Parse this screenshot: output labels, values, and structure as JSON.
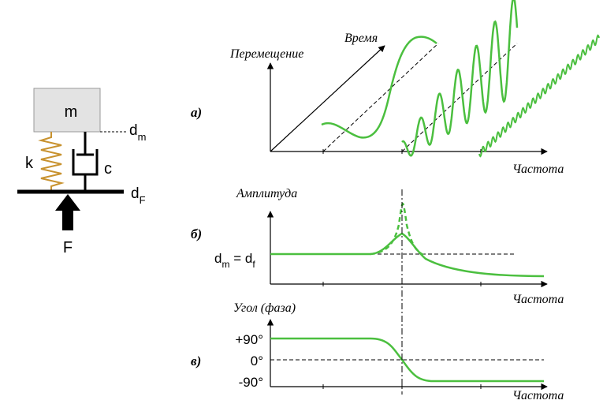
{
  "colors": {
    "curve": "#4bbf3f",
    "spring": "#c8922e",
    "mass_fill": "#e3e3e3",
    "ink": "#000000"
  },
  "model": {
    "mass_label": "m",
    "spring_label": "k",
    "damper_label": "c",
    "mass_disp_label": "d",
    "mass_disp_sub": "m",
    "base_disp_label": "d",
    "base_disp_sub": "F",
    "force_label": "F"
  },
  "panel_a": {
    "tag": "а)",
    "y_label": "Перемещение",
    "time_label": "Время",
    "x_label": "Частота"
  },
  "panel_b": {
    "tag": "б)",
    "y_label": "Амплитуда",
    "x_label": "Частота",
    "eq_d1": "d",
    "eq_sub1": "m",
    "eq_mid": " = d",
    "eq_sub2": "f"
  },
  "panel_c": {
    "tag": "в)",
    "y_label": "Угол (фаза)",
    "x_label": "Частота",
    "tick_plus": "+90°",
    "tick_zero": "0°",
    "tick_minus": "-90°"
  }
}
